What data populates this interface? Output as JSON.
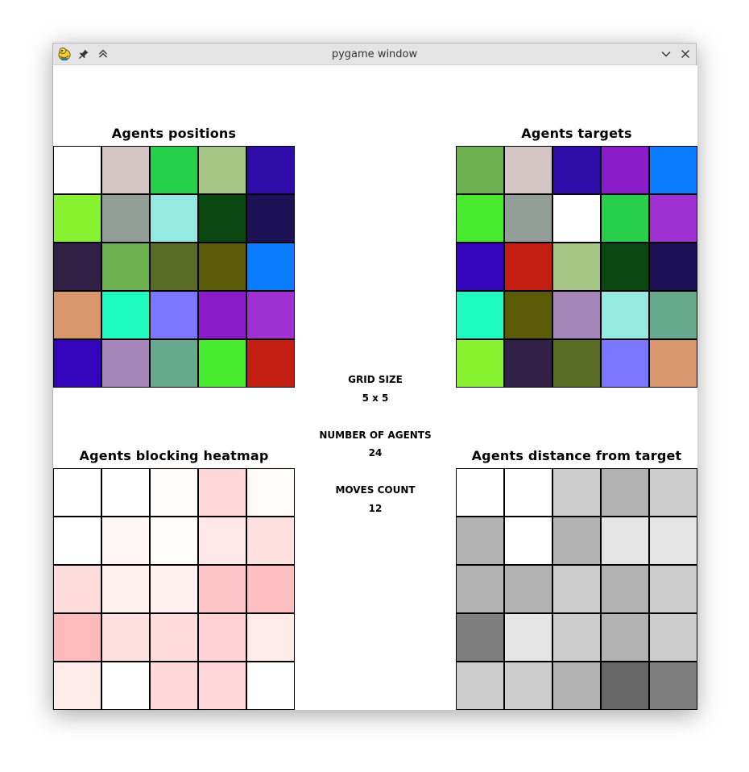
{
  "window": {
    "title": "pygame window"
  },
  "titlebar_icons": {
    "app": "pygame-snake-icon",
    "pin": "pin-icon",
    "keep_above": "keep-above-icon",
    "minimize": "chevron-down-icon",
    "close": "close-icon"
  },
  "panels": {
    "positions": {
      "title": "Agents positions",
      "cells": [
        [
          "#ffffff",
          "#d4c4c3",
          "#27d04a",
          "#a5c585",
          "#2e0ca8"
        ],
        [
          "#87f230",
          "#939e98",
          "#94e9e0",
          "#0b4710",
          "#1e1257"
        ],
        [
          "#312146",
          "#6cb04f",
          "#586c24",
          "#5a5b07",
          "#0a7cff"
        ],
        [
          "#d8966d",
          "#1efabd",
          "#7b76fe",
          "#8b1bc9",
          "#a030d2"
        ],
        [
          "#3403bc",
          "#a685b8",
          "#67a98c",
          "#48ea2d",
          "#c41d11"
        ]
      ]
    },
    "targets": {
      "title": "Agents targets",
      "cells": [
        [
          "#6cb04f",
          "#d4c4c3",
          "#2e0ca8",
          "#8b1bc9",
          "#0a7cff"
        ],
        [
          "#48ea2d",
          "#939e98",
          "#ffffff",
          "#27d04a",
          "#a030d2"
        ],
        [
          "#3403bc",
          "#c41d11",
          "#a5c585",
          "#0b4710",
          "#1e1257"
        ],
        [
          "#1efabd",
          "#5a5b07",
          "#a685b8",
          "#94e9e0",
          "#67a98c"
        ],
        [
          "#87f230",
          "#312146",
          "#586c24",
          "#7b76fe",
          "#d8966d"
        ]
      ]
    },
    "heatmap": {
      "title": "Agents blocking heatmap",
      "cells": [
        [
          "#ffffff",
          "#ffffff",
          "#fffbf9",
          "#ffd7d8",
          "#fffbf9"
        ],
        [
          "#ffffff",
          "#fff6f5",
          "#fffbf9",
          "#ffe8e9",
          "#ffe0e1"
        ],
        [
          "#ffdcdc",
          "#fff1ef",
          "#fff1ef",
          "#ffc5c6",
          "#ffbebf"
        ],
        [
          "#ffbabb",
          "#ffe0e1",
          "#ffdcdc",
          "#ffd3d4",
          "#ffecea"
        ],
        [
          "#ffecea",
          "#ffffff",
          "#ffd7d8",
          "#ffd7d8",
          "#ffffff"
        ]
      ]
    },
    "distance": {
      "title": "Agents distance from target",
      "cells": [
        [
          "#ffffff",
          "#ffffff",
          "#cccccc",
          "#b2b2b2",
          "#cccccc"
        ],
        [
          "#b2b2b2",
          "#ffffff",
          "#b2b2b2",
          "#e5e5e5",
          "#e5e5e5"
        ],
        [
          "#b2b2b2",
          "#b2b2b2",
          "#cccccc",
          "#b2b2b2",
          "#cccccc"
        ],
        [
          "#7f7f7f",
          "#e5e5e5",
          "#cccccc",
          "#b2b2b2",
          "#cccccc"
        ],
        [
          "#cccccc",
          "#cccccc",
          "#b2b2b2",
          "#666666",
          "#7f7f7f"
        ]
      ]
    }
  },
  "stats": {
    "grid_size_label": "GRID SIZE",
    "grid_size_value": "5 x 5",
    "agents_label": "NUMBER OF AGENTS",
    "agents_value": "24",
    "moves_label": "MOVES COUNT",
    "moves_value": "12"
  }
}
